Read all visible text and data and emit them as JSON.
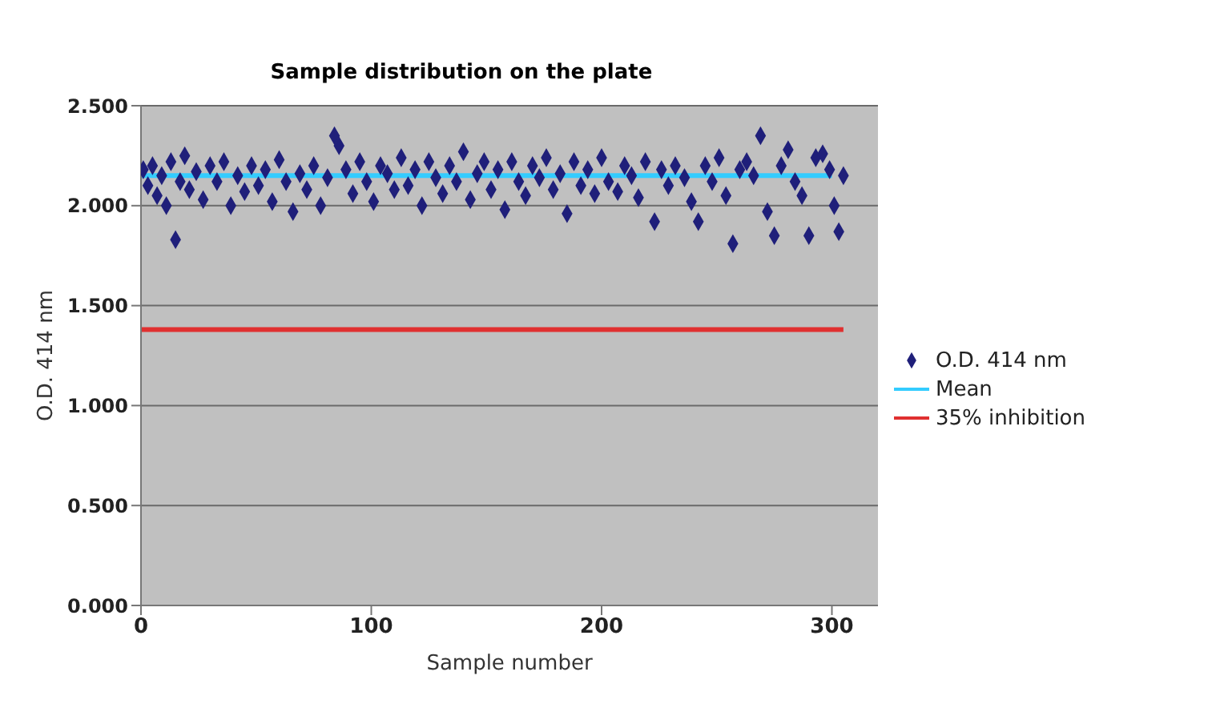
{
  "chart_data": {
    "type": "scatter",
    "title": "Sample distribution on the plate",
    "xlabel": "Sample number",
    "ylabel": "O.D. 414 nm",
    "xlim": [
      0,
      320
    ],
    "xticks": [
      0,
      100,
      200,
      300
    ],
    "ylim": [
      0,
      2.5
    ],
    "yticks": [
      {
        "value": 0,
        "label": "0.000"
      },
      {
        "value": 0.5,
        "label": "0.500"
      },
      {
        "value": 1,
        "label": "1.000"
      },
      {
        "value": 1.5,
        "label": "1.500"
      },
      {
        "value": 2,
        "label": "2.000"
      },
      {
        "value": 2.5,
        "label": "2.500"
      }
    ],
    "grid": "y",
    "legend": "right",
    "marker": "diamond",
    "series": [
      {
        "name": "O.D. 414 nm",
        "color": "#1f1f7a",
        "x": [
          1,
          3,
          5,
          7,
          9,
          11,
          13,
          15,
          17,
          19,
          21,
          24,
          27,
          30,
          33,
          36,
          39,
          42,
          45,
          48,
          51,
          54,
          57,
          60,
          63,
          66,
          69,
          72,
          75,
          78,
          81,
          84,
          86,
          89,
          92,
          95,
          98,
          101,
          104,
          107,
          110,
          113,
          116,
          119,
          122,
          125,
          128,
          131,
          134,
          137,
          140,
          143,
          146,
          149,
          152,
          155,
          158,
          161,
          164,
          167,
          170,
          173,
          176,
          179,
          182,
          185,
          188,
          191,
          194,
          197,
          200,
          203,
          207,
          210,
          213,
          216,
          219,
          223,
          226,
          229,
          232,
          236,
          239,
          242,
          245,
          248,
          251,
          254,
          257,
          260,
          263,
          266,
          269,
          272,
          275,
          278,
          281,
          284,
          287,
          290,
          293,
          296,
          299,
          301,
          303,
          305
        ],
        "values": [
          2.18,
          2.1,
          2.2,
          2.05,
          2.15,
          2.0,
          2.22,
          1.83,
          2.12,
          2.25,
          2.08,
          2.17,
          2.03,
          2.2,
          2.12,
          2.22,
          2.0,
          2.15,
          2.07,
          2.2,
          2.1,
          2.18,
          2.02,
          2.23,
          2.12,
          1.97,
          2.16,
          2.08,
          2.2,
          2.0,
          2.14,
          2.35,
          2.3,
          2.18,
          2.06,
          2.22,
          2.12,
          2.02,
          2.2,
          2.16,
          2.08,
          2.24,
          2.1,
          2.18,
          2.0,
          2.22,
          2.14,
          2.06,
          2.2,
          2.12,
          2.27,
          2.03,
          2.16,
          2.22,
          2.08,
          2.18,
          1.98,
          2.22,
          2.12,
          2.05,
          2.2,
          2.14,
          2.24,
          2.08,
          2.16,
          1.96,
          2.22,
          2.1,
          2.18,
          2.06,
          2.24,
          2.12,
          2.07,
          2.2,
          2.15,
          2.04,
          2.22,
          1.92,
          2.18,
          2.1,
          2.2,
          2.14,
          2.02,
          1.92,
          2.2,
          2.12,
          2.24,
          2.05,
          1.81,
          2.18,
          2.22,
          2.15,
          2.35,
          1.97,
          1.85,
          2.2,
          2.28,
          2.12,
          2.05,
          1.85,
          2.24,
          2.26,
          2.18,
          2.0,
          1.87,
          2.15
        ]
      },
      {
        "name": "Mean",
        "type": "line",
        "color": "#33ccff",
        "marker": "none",
        "x": [
          0,
          300
        ],
        "values": [
          2.15,
          2.15
        ]
      },
      {
        "name": "35% inhibition",
        "type": "line",
        "color": "#e03030",
        "marker": "none",
        "x": [
          0,
          305
        ],
        "values": [
          1.38,
          1.38
        ]
      }
    ]
  }
}
